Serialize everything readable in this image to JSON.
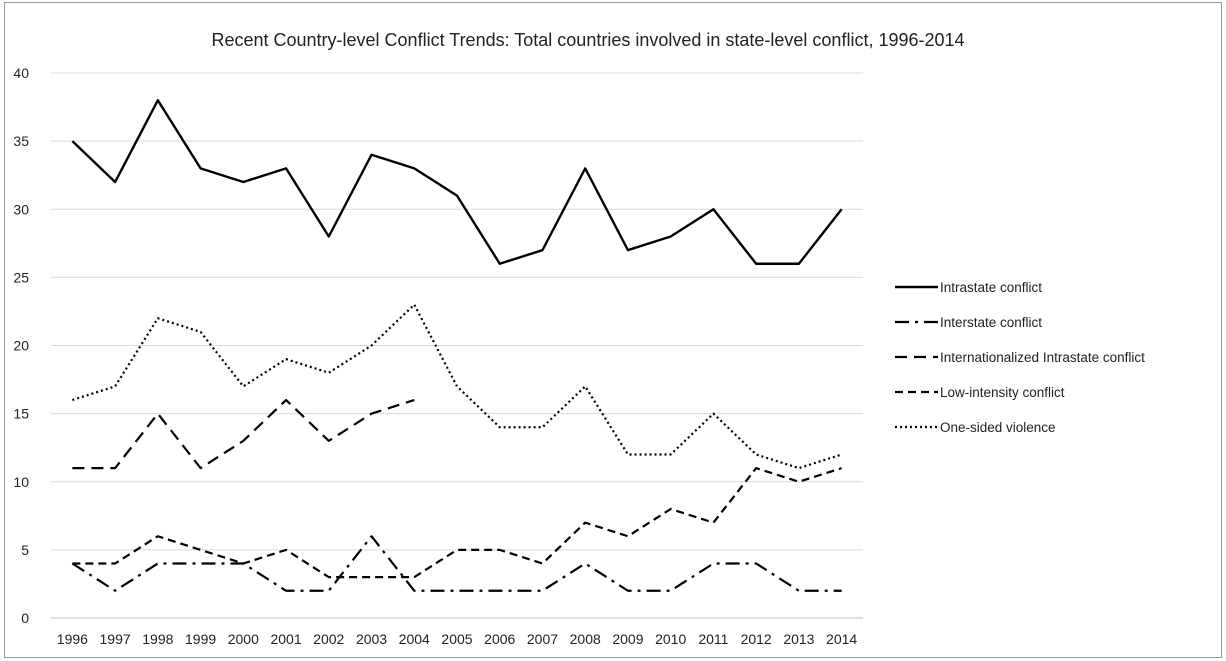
{
  "chart_data": {
    "type": "line",
    "title": "Recent Country-level Conflict Trends: Total countries involved in state-level conflict, 1996-2014",
    "xlabel": "",
    "ylabel": "",
    "ylim": [
      0,
      40
    ],
    "yticks": [
      "0",
      "5",
      "10",
      "15",
      "20",
      "25",
      "30",
      "35",
      "40"
    ],
    "grid": true,
    "legend_position": "right",
    "x": [
      "1996",
      "1997",
      "1998",
      "1999",
      "2000",
      "2001",
      "2002",
      "2003",
      "2004",
      "2005",
      "2006",
      "2007",
      "2008",
      "2009",
      "2010",
      "2011",
      "2012",
      "2013",
      "2014"
    ],
    "series": [
      {
        "name": "Intrastate conflict",
        "style": "solid",
        "color": "#000000",
        "values": [
          35,
          32,
          38,
          33,
          32,
          33,
          28,
          34,
          33,
          31,
          26,
          27,
          33,
          27,
          28,
          30,
          26,
          26,
          30
        ]
      },
      {
        "name": "Interstate conflict",
        "style": "dash-dot",
        "color": "#000000",
        "values": [
          4,
          2,
          4,
          4,
          4,
          2,
          2,
          6,
          2,
          2,
          2,
          2,
          4,
          2,
          2,
          4,
          4,
          2,
          2
        ]
      },
      {
        "name": "Internationalized Intrastate conflict",
        "style": "long-dash",
        "color": "#000000",
        "values": [
          11,
          11,
          15,
          11,
          13,
          16,
          13,
          15,
          16,
          null,
          null,
          null,
          null,
          null,
          null,
          null,
          null,
          null,
          null
        ]
      },
      {
        "name": "Low-intensity conflict",
        "style": "dash",
        "color": "#000000",
        "values": [
          4,
          4,
          6,
          5,
          4,
          5,
          3,
          3,
          3,
          5,
          5,
          4,
          7,
          6,
          8,
          7,
          11,
          10,
          11
        ]
      },
      {
        "name": "One-sided violence",
        "style": "dotted",
        "color": "#000000",
        "values": [
          16,
          17,
          22,
          21,
          17,
          19,
          18,
          20,
          23,
          17,
          14,
          14,
          17,
          12,
          12,
          15,
          12,
          11,
          12
        ]
      }
    ]
  }
}
